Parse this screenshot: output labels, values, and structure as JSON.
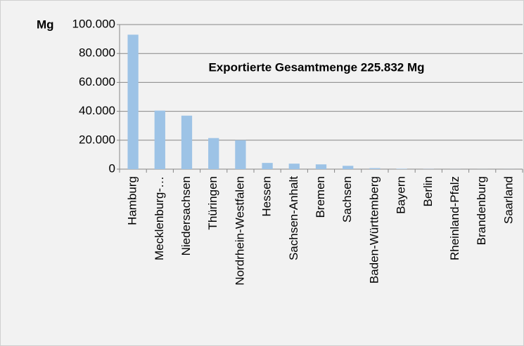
{
  "chart_data": {
    "type": "bar",
    "annotation": "Exportierte Gesamtmenge 225.832 Mg",
    "y_label": "Mg",
    "categories": [
      "Hamburg",
      "Mecklenburg-…",
      "Niedersachsen",
      "Thüringen",
      "Nordrhein-Westfalen",
      "Hessen",
      "Sachsen-Anhalt",
      "Bremen",
      "Sachsen",
      "Baden-Württemberg",
      "Bayern",
      "Berlin",
      "Rheinland-Pfalz",
      "Brandenburg",
      "Saarland"
    ],
    "values": [
      93000,
      40500,
      37000,
      21500,
      20000,
      4300,
      3800,
      3300,
      2300,
      700,
      300,
      100,
      50,
      30,
      20
    ],
    "color": "#9dc3e6",
    "ylim": [
      0,
      100000
    ],
    "yticks": [
      0,
      {
        "value": 20000,
        "label": "20.000"
      },
      {
        "value": 40000,
        "label": "40.000"
      },
      {
        "value": 60000,
        "label": "60.000"
      },
      {
        "value": 80000,
        "label": "80.000"
      },
      {
        "value": 100000,
        "label": "100.000"
      }
    ],
    "grid": true
  }
}
